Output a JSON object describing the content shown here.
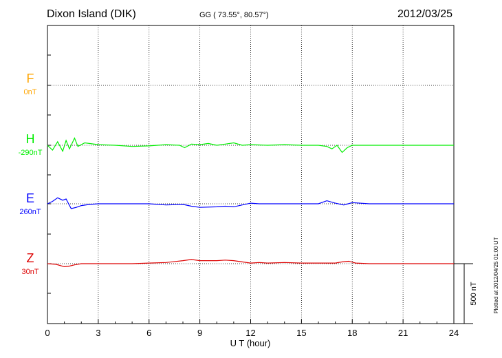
{
  "header": {
    "station": "Dixon Island (DIK)",
    "coords": "GG ( 73.55°,  80.57°)",
    "date": "2012/03/25"
  },
  "colors": {
    "F": "#ffa500",
    "H": "#00ee00",
    "E": "#0000ff",
    "Z": "#dd0000",
    "axis": "#000000"
  },
  "chart_data": {
    "type": "line",
    "xlabel": "U T (hour)",
    "xlim": [
      0,
      24
    ],
    "x_ticks": [
      "0",
      "3",
      "6",
      "9",
      "12",
      "15",
      "18",
      "21",
      "24"
    ],
    "scale_bar_label": "500 nT",
    "scale_bar_nT": 500,
    "plotted_note": "Plotted at 2012/04/25 01:00 UT",
    "series": [
      {
        "name": "F",
        "baseline_label": "0nT",
        "x": [],
        "values": []
      },
      {
        "name": "H",
        "baseline_label": "-290nT",
        "x": [
          0,
          0.3,
          0.6,
          0.9,
          1.1,
          1.3,
          1.6,
          1.8,
          2.2,
          3,
          4,
          5,
          6,
          7,
          7.8,
          8.1,
          8.5,
          9,
          9.5,
          10,
          10.5,
          11,
          11.5,
          12,
          13,
          14,
          15,
          16,
          16.5,
          16.8,
          17.1,
          17.4,
          17.7,
          18,
          19,
          20,
          21,
          22,
          23,
          24
        ],
        "values": [
          0,
          -40,
          30,
          -50,
          40,
          -30,
          60,
          -10,
          20,
          5,
          0,
          -10,
          -5,
          5,
          0,
          -20,
          10,
          5,
          15,
          0,
          10,
          20,
          0,
          5,
          0,
          5,
          0,
          0,
          -10,
          -30,
          0,
          -60,
          -20,
          0,
          0,
          0,
          0,
          0,
          0,
          0
        ]
      },
      {
        "name": "E",
        "baseline_label": "260nT",
        "x": [
          0,
          0.3,
          0.6,
          0.9,
          1.1,
          1.4,
          1.7,
          2,
          2.5,
          3,
          4,
          5,
          6,
          7,
          8,
          8.5,
          9,
          10,
          10.5,
          11,
          11.5,
          12,
          12.5,
          13,
          14,
          15,
          16,
          16.5,
          17,
          17.5,
          18,
          19,
          20,
          21,
          22,
          23,
          24
        ],
        "values": [
          0,
          20,
          50,
          30,
          40,
          -40,
          -30,
          -15,
          -5,
          0,
          0,
          0,
          0,
          -10,
          -5,
          -20,
          -30,
          -25,
          -20,
          -25,
          -10,
          5,
          0,
          0,
          0,
          0,
          0,
          25,
          5,
          -10,
          10,
          0,
          0,
          0,
          0,
          0,
          0
        ]
      },
      {
        "name": "Z",
        "baseline_label": "30nT",
        "x": [
          0,
          0.5,
          1,
          1.3,
          1.6,
          2,
          3,
          4,
          5,
          6,
          7,
          8,
          8.5,
          9,
          10,
          10.5,
          11,
          11.5,
          12,
          12.5,
          13,
          14,
          15,
          16,
          17,
          17.4,
          17.8,
          18.2,
          19,
          20,
          21,
          22,
          23,
          24
        ],
        "values": [
          0,
          -5,
          -25,
          -20,
          -10,
          0,
          0,
          0,
          0,
          5,
          10,
          25,
          35,
          25,
          25,
          30,
          25,
          15,
          5,
          10,
          5,
          10,
          5,
          5,
          5,
          15,
          20,
          5,
          0,
          0,
          0,
          0,
          0,
          0
        ]
      }
    ]
  }
}
